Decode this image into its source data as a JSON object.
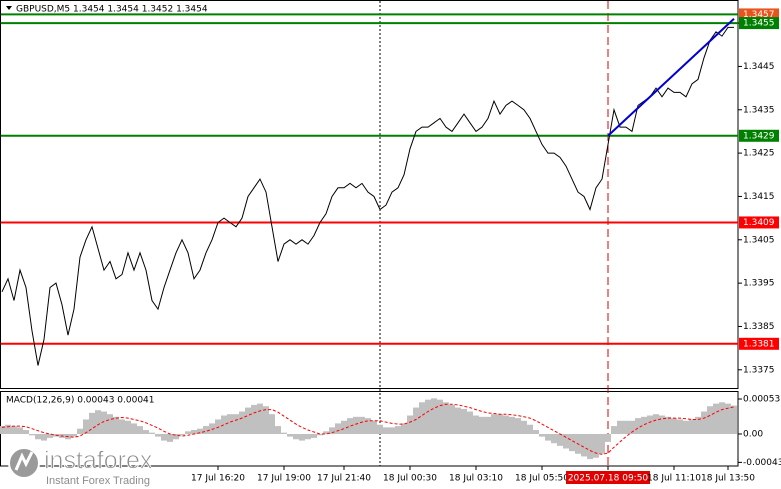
{
  "chart_data": [
    {
      "type": "line",
      "title": "GBPUSD,M5 1.3454 1.3454 1.3452 1.3454",
      "color": "#000000",
      "categories": [
        null,
        null,
        null,
        null,
        null,
        null,
        null,
        null,
        null,
        null,
        null,
        null,
        null,
        null,
        null,
        null,
        null,
        null,
        null,
        null,
        null,
        null,
        null,
        null,
        null,
        null,
        null,
        null,
        null,
        null,
        null,
        null,
        null,
        null,
        null,
        null,
        "17 Jul 16:20",
        null,
        null,
        null,
        null,
        null,
        null,
        null,
        null,
        null,
        null,
        "17 Jul 19:00",
        null,
        null,
        null,
        null,
        null,
        null,
        null,
        null,
        null,
        "17 Jul 21:40",
        null,
        null,
        null,
        null,
        null,
        null,
        null,
        null,
        null,
        null,
        "18 Jul 00:30",
        null,
        null,
        null,
        null,
        null,
        null,
        null,
        null,
        null,
        null,
        "18 Jul 03:10",
        null,
        null,
        null,
        null,
        null,
        null,
        null,
        null,
        null,
        null,
        "18 Jul 05:50",
        null,
        null,
        null,
        null,
        null,
        null,
        null,
        null,
        null,
        null,
        "2025.07.18 09:50",
        null,
        null,
        null,
        null,
        null,
        null,
        null,
        null,
        null,
        null,
        "18 Jul 11:10",
        null,
        null,
        null,
        null,
        null,
        null,
        null,
        null,
        "18 Jul 13:50",
        null
      ],
      "values": [
        1.3393,
        1.3396,
        1.3391,
        1.3398,
        1.3394,
        1.3384,
        1.3376,
        1.3382,
        1.3394,
        1.3395,
        1.339,
        1.3383,
        1.3389,
        1.3401,
        1.3405,
        1.3408,
        1.3403,
        1.3398,
        1.34,
        1.3396,
        1.3397,
        1.3402,
        1.3398,
        1.3402,
        1.3398,
        1.3391,
        1.3389,
        1.3394,
        1.3398,
        1.3402,
        1.3405,
        1.3402,
        1.3396,
        1.3398,
        1.3402,
        1.3405,
        1.3409,
        1.341,
        1.3409,
        1.3408,
        1.341,
        1.3415,
        1.3417,
        1.3419,
        1.3416,
        1.3408,
        1.34,
        1.3404,
        1.3405,
        1.3404,
        1.3405,
        1.3404,
        1.3406,
        1.3409,
        1.3411,
        1.3415,
        1.3417,
        1.3417,
        1.3418,
        1.3417,
        1.3418,
        1.3416,
        1.3415,
        1.3412,
        1.3413,
        1.3416,
        1.3417,
        1.342,
        1.3426,
        1.343,
        1.3431,
        1.3431,
        1.3432,
        1.3433,
        1.3431,
        1.343,
        1.3432,
        1.3434,
        1.3432,
        1.343,
        1.3431,
        1.3433,
        1.3437,
        1.3434,
        1.3436,
        1.3437,
        1.3436,
        1.3435,
        1.3433,
        1.343,
        1.3427,
        1.3425,
        1.3425,
        1.3424,
        1.3422,
        1.3419,
        1.3416,
        1.3415,
        1.3412,
        1.3417,
        1.3419,
        1.3427,
        1.3435,
        1.3431,
        1.3431,
        1.343,
        1.3436,
        1.3437,
        1.3438,
        1.344,
        1.3438,
        1.344,
        1.3439,
        1.3439,
        1.3438,
        1.3441,
        1.3442,
        1.3447,
        1.3451,
        1.3453,
        1.3452,
        1.3454,
        1.3454
      ],
      "ylim": [
        1.33708,
        1.34601
      ],
      "yticks": [
        1.3375,
        1.3385,
        1.3395,
        1.3405,
        1.3415,
        1.3425,
        1.3435,
        1.3445,
        1.3455
      ],
      "levels": [
        {
          "value": 1.3457,
          "color": "#008000",
          "label_color": "#e8541c"
        },
        {
          "value": 1.3455,
          "color": "#008000",
          "label_color": "#008000"
        },
        {
          "value": 1.3429,
          "color": "#008000",
          "label_color": "#008000"
        },
        {
          "value": 1.3409,
          "color": "#ff0000",
          "label_color": "#ff0000"
        },
        {
          "value": 1.3381,
          "color": "#ff0000",
          "label_color": "#ff0000"
        }
      ],
      "vline": {
        "index": 101,
        "color": "#e00000"
      },
      "separator_index": 63,
      "trendline": {
        "from": 1.3429,
        "to": 1.3456,
        "color": "#0000d0"
      }
    },
    {
      "type": "macd",
      "title": "MACD(12,26,9) 0.00043 0.00041",
      "ylim": [
        -0.000485,
        0.000636
      ],
      "yticks": [
        -0.00043,
        {
          "value": 0,
          "label": "0.00"
        },
        0.00053
      ],
      "histogram": {
        "color": "#c0c0c0",
        "values": [
          0.00012,
          0.00014,
          0.00012,
          0.0001,
          6e-05,
          -2e-05,
          -8e-05,
          -0.0001,
          -6e-05,
          -4e-05,
          -6e-05,
          -8e-05,
          -4e-05,
          8e-05,
          0.00022,
          0.00032,
          0.00036,
          0.00034,
          0.0003,
          0.00026,
          0.00022,
          0.0002,
          0.00016,
          0.00012,
          6e-05,
          2e-05,
          -4e-05,
          -0.0001,
          -0.00012,
          -8e-05,
          -2e-05,
          4e-05,
          6e-05,
          8e-05,
          0.00012,
          0.00016,
          0.00022,
          0.00028,
          0.0003,
          0.0003,
          0.00034,
          0.0004,
          0.00044,
          0.00046,
          0.00042,
          0.0003,
          0.00012,
          2e-05,
          -4e-05,
          -8e-05,
          -0.0001,
          -8e-05,
          -6e-05,
          -2e-05,
          4e-05,
          0.0001,
          0.00016,
          0.0002,
          0.00024,
          0.00026,
          0.00026,
          0.00024,
          0.0002,
          0.00014,
          0.0001,
          0.0001,
          0.00012,
          0.00016,
          0.00028,
          0.0004,
          0.00048,
          0.00052,
          0.00054,
          0.00052,
          0.00048,
          0.00044,
          0.0004,
          0.00038,
          0.00034,
          0.00028,
          0.00026,
          0.00026,
          0.0003,
          0.0003,
          0.00028,
          0.00026,
          0.00024,
          0.0002,
          0.00014,
          6e-05,
          -4e-05,
          -0.0001,
          -0.00014,
          -0.00018,
          -0.00022,
          -0.00026,
          -0.0003,
          -0.00034,
          -0.00038,
          -0.00036,
          -0.0003,
          -0.00012,
          0.00012,
          0.0002,
          0.0002,
          0.0002,
          0.00024,
          0.00026,
          0.00028,
          0.0003,
          0.00028,
          0.00026,
          0.00024,
          0.00022,
          0.0002,
          0.00022,
          0.00026,
          0.00034,
          0.00042,
          0.00046,
          0.00048,
          0.00046,
          0.00043
        ]
      },
      "signal": {
        "color": "#ff0000",
        "values": [
          0.0001,
          0.00011,
          0.00012,
          0.00012,
          0.00011,
          8e-05,
          5e-05,
          2e-05,
          0,
          -2e-05,
          -3e-05,
          -4e-05,
          -5e-05,
          -3e-05,
          2e-05,
          8e-05,
          0.00014,
          0.00019,
          0.00022,
          0.00024,
          0.00025,
          0.00024,
          0.00022,
          0.0002,
          0.00017,
          0.00013,
          9e-05,
          4e-05,
          0,
          -2e-05,
          -3e-05,
          -2e-05,
          0,
          2e-05,
          4e-05,
          7e-05,
          0.0001,
          0.00014,
          0.00018,
          0.00021,
          0.00024,
          0.00028,
          0.00032,
          0.00035,
          0.00037,
          0.00037,
          0.00033,
          0.00027,
          0.00021,
          0.00015,
          0.0001,
          6e-05,
          3e-05,
          0,
          0,
          2e-05,
          5e-05,
          8e-05,
          0.00012,
          0.00015,
          0.00018,
          0.0002,
          0.0002,
          0.0002,
          0.00018,
          0.00016,
          0.00015,
          0.00015,
          0.00018,
          0.00022,
          0.00028,
          0.00034,
          0.00039,
          0.00043,
          0.00045,
          0.00045,
          0.00044,
          0.00042,
          0.0004,
          0.00037,
          0.00034,
          0.00032,
          0.00031,
          0.0003,
          0.0003,
          0.00029,
          0.00028,
          0.00026,
          0.00024,
          0.0002,
          0.00015,
          0.0001,
          5e-05,
          0,
          -5e-05,
          -0.0001,
          -0.00015,
          -0.0002,
          -0.00025,
          -0.00029,
          -0.00031,
          -0.00029,
          -0.0002,
          -0.00012,
          -4e-05,
          3e-05,
          9e-05,
          0.00014,
          0.00018,
          0.00021,
          0.00023,
          0.00024,
          0.00024,
          0.00024,
          0.00023,
          0.00022,
          0.00022,
          0.00024,
          0.00028,
          0.00033,
          0.00037,
          0.00039,
          0.00041
        ]
      }
    }
  ],
  "logo": {
    "name": "instaforex",
    "tagline": "Instant Forex Trading"
  }
}
